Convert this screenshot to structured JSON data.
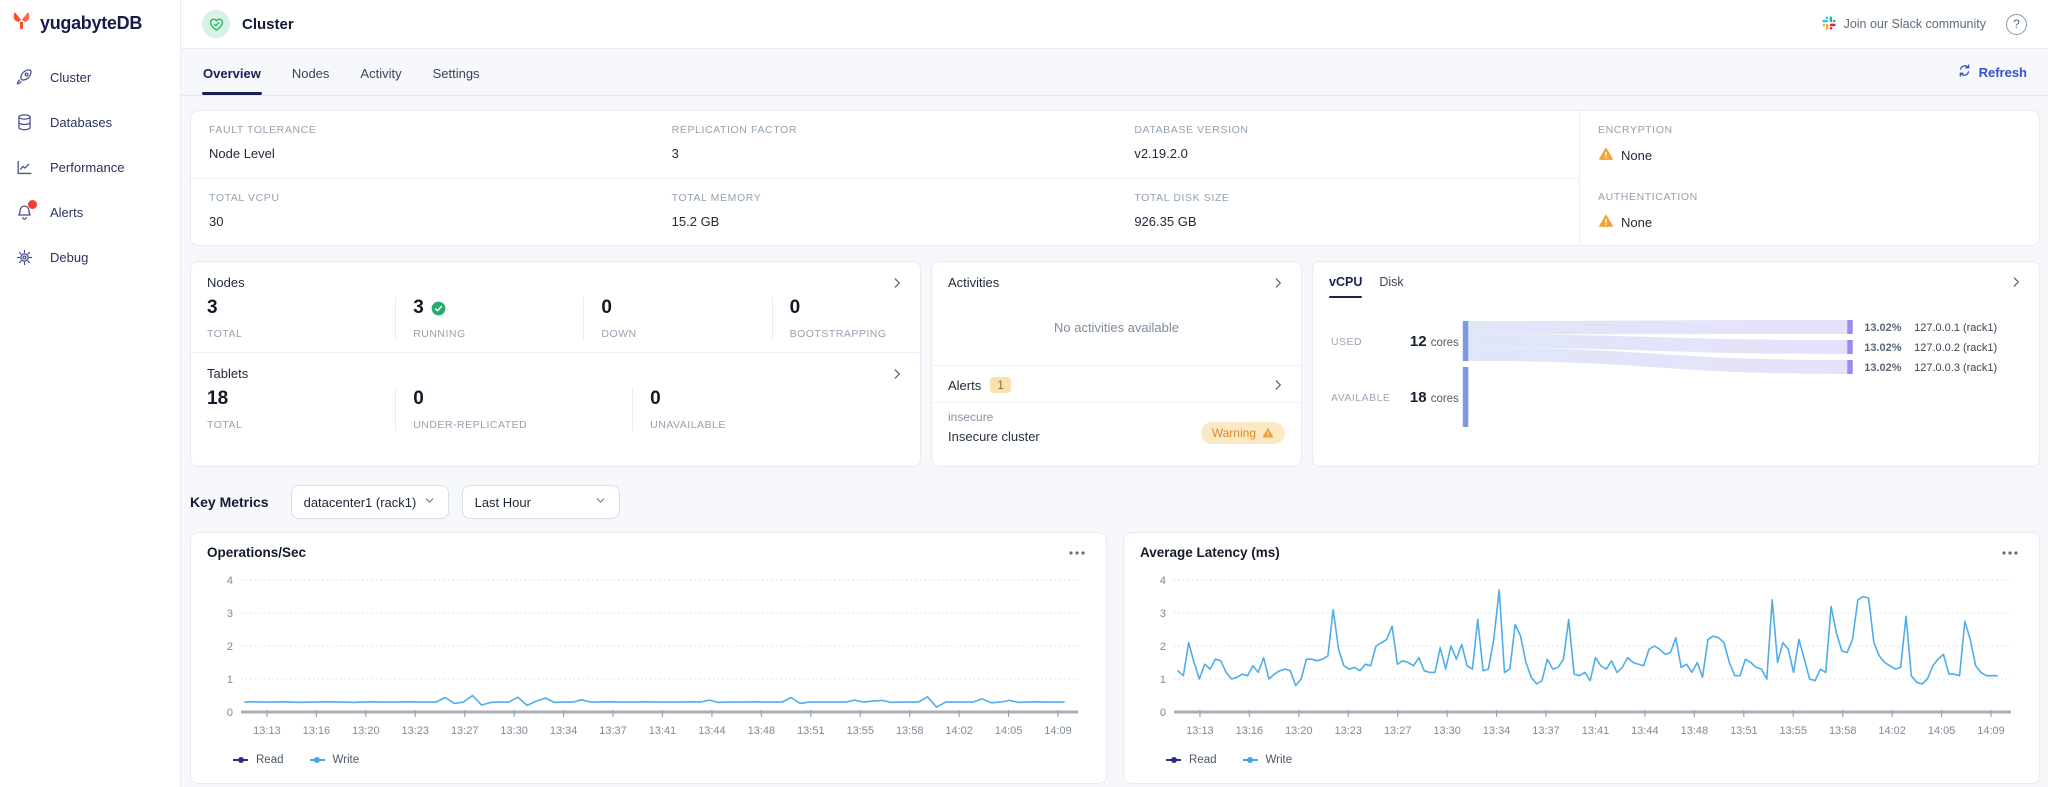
{
  "app": {
    "logo_text": "yugabyteDB"
  },
  "sidebar": {
    "items": [
      {
        "label": "Cluster",
        "icon": "rocket-icon"
      },
      {
        "label": "Databases",
        "icon": "database-icon"
      },
      {
        "label": "Performance",
        "icon": "performance-chart-icon"
      },
      {
        "label": "Alerts",
        "icon": "bell-icon",
        "has_notification": true
      },
      {
        "label": "Debug",
        "icon": "gear-icon"
      }
    ]
  },
  "header": {
    "title": "Cluster",
    "slack_link": "Join our Slack community",
    "help_glyph": "?"
  },
  "tabs": {
    "items": [
      "Overview",
      "Nodes",
      "Activity",
      "Settings"
    ],
    "active": "Overview",
    "refresh_label": "Refresh"
  },
  "summary": {
    "cells": [
      {
        "label": "FAULT TOLERANCE",
        "value": "Node Level"
      },
      {
        "label": "REPLICATION FACTOR",
        "value": "3"
      },
      {
        "label": "DATABASE VERSION",
        "value": "v2.19.2.0"
      },
      {
        "label": "TOTAL VCPU",
        "value": "30"
      },
      {
        "label": "TOTAL MEMORY",
        "value": "15.2 GB"
      },
      {
        "label": "TOTAL DISK SIZE",
        "value": "926.35 GB"
      }
    ],
    "security": [
      {
        "label": "ENCRYPTION",
        "value": "None",
        "warning": true
      },
      {
        "label": "AUTHENTICATION",
        "value": "None",
        "warning": true
      }
    ]
  },
  "nodes_panel": {
    "title": "Nodes",
    "stats": [
      {
        "value": "3",
        "label": "TOTAL"
      },
      {
        "value": "3",
        "label": "RUNNING",
        "check": true
      },
      {
        "value": "0",
        "label": "DOWN"
      },
      {
        "value": "0",
        "label": "BOOTSTRAPPING"
      }
    ]
  },
  "tablets_panel": {
    "title": "Tablets",
    "stats": [
      {
        "value": "18",
        "label": "TOTAL"
      },
      {
        "value": "0",
        "label": "UNDER-REPLICATED"
      },
      {
        "value": "0",
        "label": "UNAVAILABLE"
      }
    ]
  },
  "activities_panel": {
    "title": "Activities",
    "empty_text": "No activities available"
  },
  "alerts_panel": {
    "title": "Alerts",
    "count": "1",
    "alert": {
      "name": "insecure",
      "description": "Insecure cluster",
      "severity": "Warning"
    }
  },
  "usage_panel": {
    "tabs": [
      "vCPU",
      "Disk"
    ],
    "active_tab": "vCPU",
    "used": {
      "label": "USED",
      "value": "12",
      "unit": "cores"
    },
    "available": {
      "label": "AVAILABLE",
      "value": "18",
      "unit": "cores"
    },
    "nodes": [
      {
        "percent": "13.02%",
        "name": "127.0.0.1",
        "zone": "(rack1)"
      },
      {
        "percent": "13.02%",
        "name": "127.0.0.2",
        "zone": "(rack1)"
      },
      {
        "percent": "13.02%",
        "name": "127.0.0.3",
        "zone": "(rack1)"
      }
    ],
    "colors": {
      "left_bar": "#7D97E3",
      "right_bar": "#9C8BEE",
      "flow_start": "#DCE4F6",
      "flow_end": "#E4DEFB"
    }
  },
  "key_metrics": {
    "title": "Key Metrics",
    "region_select": "datacenter1 (rack1)",
    "time_select": "Last Hour"
  },
  "chart_data": [
    {
      "type": "line",
      "title": "Operations/Sec",
      "x_ticks": [
        "13:13",
        "13:16",
        "13:20",
        "13:23",
        "13:27",
        "13:30",
        "13:34",
        "13:37",
        "13:41",
        "13:44",
        "13:48",
        "13:51",
        "13:55",
        "13:58",
        "14:02",
        "14:05",
        "14:09"
      ],
      "yticks": [
        0,
        1,
        2,
        3,
        4
      ],
      "ylim": [
        0,
        4.3
      ],
      "grid": "dotted-horizontal",
      "legend_position": "bottom",
      "series": [
        {
          "name": "Read",
          "color": "#2D2E87",
          "values": [
            0,
            0
          ]
        },
        {
          "name": "Write",
          "color": "#4FADE8",
          "values": [
            0.3,
            0.31,
            0.3,
            0.3,
            0.31,
            0.3,
            0.29,
            0.3,
            0.3,
            0.31,
            0.3,
            0.3,
            0.29,
            0.3,
            0.31,
            0.3,
            0.3,
            0.3,
            0.31,
            0.3,
            0.3,
            0.3,
            0.44,
            0.26,
            0.3,
            0.5,
            0.21,
            0.29,
            0.3,
            0.3,
            0.45,
            0.2,
            0.33,
            0.42,
            0.29,
            0.3,
            0.3,
            0.37,
            0.3,
            0.3,
            0.31,
            0.3,
            0.3,
            0.3,
            0.31,
            0.3,
            0.3,
            0.3,
            0.3,
            0.31,
            0.3,
            0.36,
            0.29,
            0.3,
            0.3,
            0.3,
            0.31,
            0.3,
            0.3,
            0.3,
            0.44,
            0.26,
            0.3,
            0.3,
            0.3,
            0.3,
            0.3,
            0.36,
            0.3,
            0.33,
            0.35,
            0.29,
            0.3,
            0.3,
            0.3,
            0.46,
            0.15,
            0.3,
            0.3,
            0.3,
            0.3,
            0.4,
            0.28,
            0.3,
            0.35,
            0.29,
            0.3,
            0.31,
            0.3,
            0.3,
            0.3
          ]
        }
      ]
    },
    {
      "type": "line",
      "title": "Average Latency (ms)",
      "x_ticks": [
        "13:13",
        "13:16",
        "13:20",
        "13:23",
        "13:27",
        "13:30",
        "13:34",
        "13:37",
        "13:41",
        "13:44",
        "13:48",
        "13:51",
        "13:55",
        "13:58",
        "14:02",
        "14:05",
        "14:09"
      ],
      "yticks": [
        0,
        1,
        2,
        3,
        4
      ],
      "ylim": [
        0,
        4.3
      ],
      "grid": "dotted-horizontal",
      "legend_position": "bottom",
      "series": [
        {
          "name": "Read",
          "color": "#2D2E87",
          "values": [
            0,
            0
          ]
        },
        {
          "name": "Write",
          "color": "#4FADE8",
          "values": [
            1.25,
            1.1,
            2.1,
            1.5,
            1.0,
            1.45,
            1.3,
            1.6,
            1.55,
            1.2,
            1.0,
            1.05,
            1.15,
            1.1,
            1.4,
            1.2,
            1.65,
            1.0,
            1.15,
            1.25,
            1.3,
            1.25,
            0.8,
            1.0,
            1.6,
            1.6,
            1.55,
            1.6,
            1.7,
            3.1,
            1.9,
            1.4,
            1.3,
            1.35,
            1.25,
            1.45,
            1.4,
            2.0,
            2.1,
            2.2,
            2.6,
            1.45,
            1.55,
            1.5,
            1.4,
            1.65,
            1.25,
            1.2,
            1.2,
            1.95,
            1.3,
            2.0,
            1.6,
            2.05,
            1.4,
            1.3,
            2.8,
            1.25,
            1.3,
            2.2,
            3.7,
            1.2,
            1.3,
            2.65,
            2.3,
            1.5,
            1.05,
            0.85,
            0.95,
            1.6,
            1.3,
            1.35,
            1.6,
            2.8,
            1.15,
            1.1,
            1.2,
            0.95,
            1.65,
            1.4,
            1.3,
            1.55,
            1.2,
            1.35,
            1.65,
            1.5,
            1.45,
            1.4,
            1.9,
            2.0,
            1.9,
            1.75,
            1.8,
            2.25,
            1.35,
            1.45,
            1.2,
            1.5,
            1.05,
            2.2,
            2.3,
            2.25,
            2.1,
            1.5,
            1.1,
            1.1,
            1.6,
            1.5,
            1.35,
            1.3,
            1.0,
            3.4,
            1.5,
            2.1,
            1.9,
            1.2,
            2.2,
            1.6,
            1.0,
            0.95,
            1.3,
            1.2,
            3.2,
            2.4,
            1.85,
            1.8,
            2.2,
            3.4,
            3.5,
            3.45,
            2.1,
            1.7,
            1.5,
            1.4,
            1.3,
            1.35,
            2.9,
            1.1,
            0.9,
            0.85,
            1.0,
            1.4,
            1.6,
            1.75,
            1.15,
            1.15,
            1.1,
            2.75,
            2.2,
            1.4,
            1.2,
            1.1,
            1.1,
            1.1
          ]
        }
      ]
    }
  ],
  "colors": {
    "accent_blue": "#3354CB",
    "write_line": "#4FADE8",
    "read_line": "#2D2E87",
    "warning_orange": "#F2A33A",
    "success_green": "#27AA6D",
    "background": "#F6F8FB"
  }
}
